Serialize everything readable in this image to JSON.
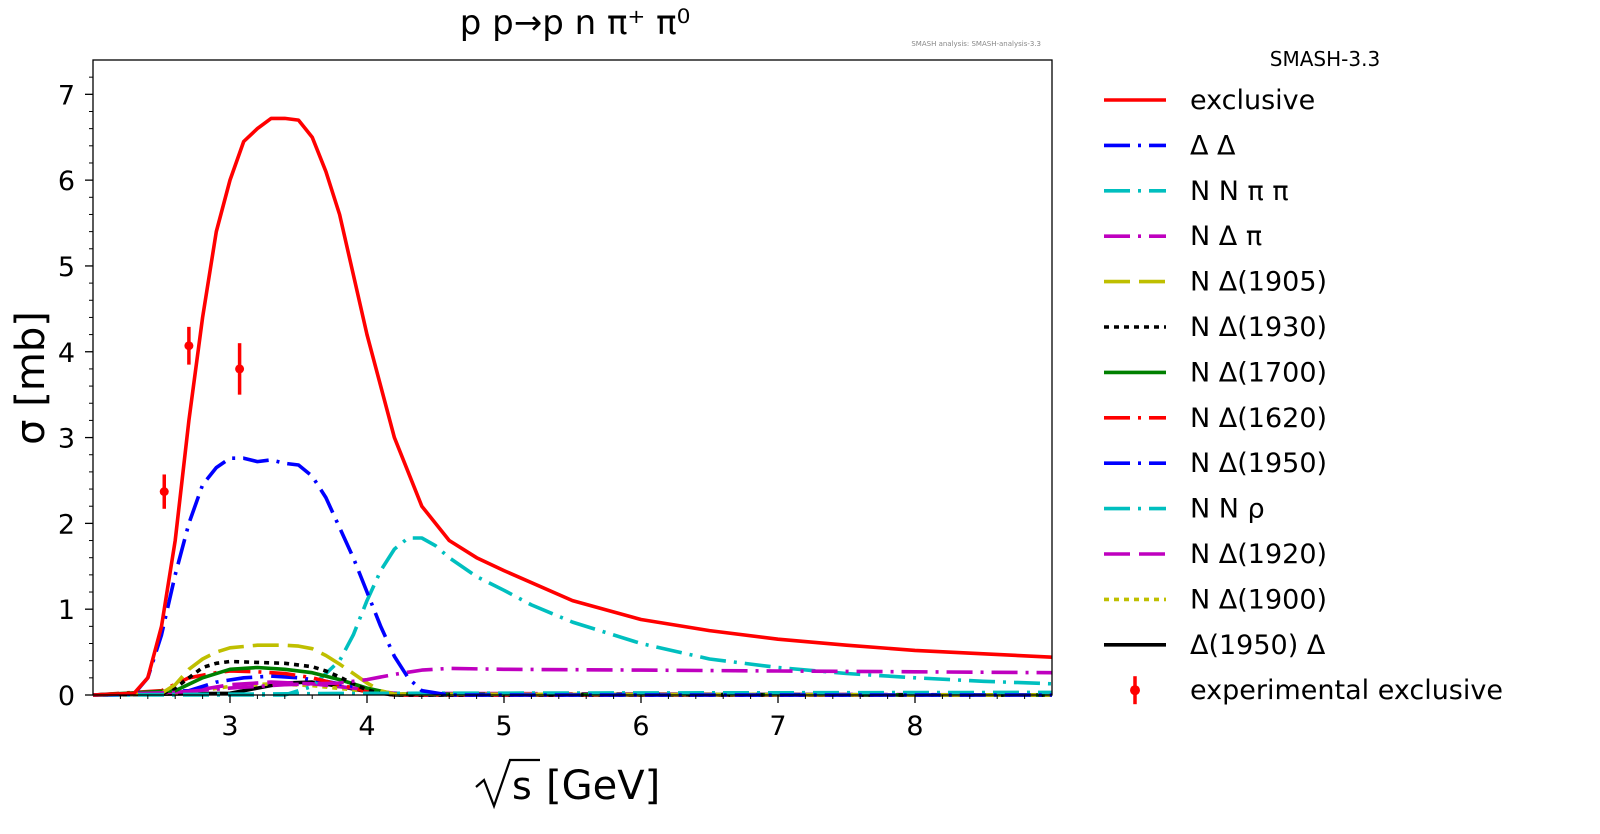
{
  "chart_data": {
    "type": "line",
    "title": "p p→p n π⁺ π⁰",
    "watermark": "SMASH analysis: SMASH-analysis-3.3",
    "xlabel_sym": "s",
    "xlabel_unit": "[GeV]",
    "ylabel": "σ [mb]",
    "xlim": [
      2.0,
      9.0
    ],
    "ylim": [
      0,
      7.4
    ],
    "xticks": [
      3,
      4,
      5,
      6,
      7,
      8
    ],
    "yticks": [
      0,
      1,
      2,
      3,
      4,
      5,
      6,
      7
    ],
    "grid": false,
    "legend": {
      "title": "SMASH-3.3",
      "placement": "outside-right"
    },
    "series": [
      {
        "name": "exclusive",
        "color": "#ff0000",
        "style": "solid",
        "x": [
          2.0,
          2.3,
          2.4,
          2.5,
          2.6,
          2.7,
          2.8,
          2.9,
          3.0,
          3.1,
          3.2,
          3.3,
          3.4,
          3.5,
          3.6,
          3.7,
          3.8,
          3.9,
          4.0,
          4.2,
          4.4,
          4.6,
          4.8,
          5.0,
          5.5,
          6.0,
          6.5,
          7.0,
          7.5,
          8.0,
          8.5,
          9.0
        ],
        "y": [
          0.0,
          0.02,
          0.2,
          0.8,
          1.8,
          3.2,
          4.4,
          5.4,
          6.0,
          6.45,
          6.6,
          6.72,
          6.72,
          6.7,
          6.5,
          6.1,
          5.6,
          4.9,
          4.2,
          3.0,
          2.2,
          1.8,
          1.6,
          1.45,
          1.1,
          0.88,
          0.75,
          0.65,
          0.58,
          0.52,
          0.48,
          0.44
        ]
      },
      {
        "name": "Δ Δ",
        "color": "#0000ff",
        "style": "dashdot",
        "x": [
          2.0,
          2.3,
          2.4,
          2.5,
          2.6,
          2.7,
          2.8,
          2.9,
          3.0,
          3.1,
          3.2,
          3.3,
          3.4,
          3.5,
          3.6,
          3.7,
          3.8,
          3.9,
          4.0,
          4.1,
          4.2,
          4.3,
          4.4,
          4.6,
          9.0
        ],
        "y": [
          0.0,
          0.01,
          0.2,
          0.7,
          1.4,
          2.0,
          2.45,
          2.65,
          2.76,
          2.76,
          2.72,
          2.74,
          2.7,
          2.68,
          2.55,
          2.3,
          1.95,
          1.6,
          1.2,
          0.8,
          0.45,
          0.2,
          0.05,
          0.0,
          0.0
        ]
      },
      {
        "name": "N N π π",
        "color": "#00bfbf",
        "style": "dashdot",
        "x": [
          2.0,
          4.0,
          9.0
        ],
        "y": [
          0.0,
          0.02,
          0.03
        ]
      },
      {
        "name": "N Δ π",
        "color": "#bf00bf",
        "style": "dashdot",
        "x": [
          2.0,
          2.6,
          3.0,
          3.4,
          3.8,
          4.0,
          4.2,
          4.4,
          4.6,
          5.0,
          6.0,
          7.0,
          8.0,
          9.0
        ],
        "y": [
          0.0,
          0.03,
          0.08,
          0.12,
          0.14,
          0.18,
          0.24,
          0.29,
          0.31,
          0.3,
          0.29,
          0.28,
          0.27,
          0.26
        ]
      },
      {
        "name": "N Δ(1905)",
        "color": "#bfbf00",
        "style": "dashed",
        "x": [
          2.0,
          2.5,
          2.6,
          2.7,
          2.8,
          2.9,
          3.0,
          3.2,
          3.4,
          3.5,
          3.6,
          3.7,
          3.8,
          3.9,
          4.0,
          4.1,
          4.2,
          9.0
        ],
        "y": [
          0.0,
          0.02,
          0.12,
          0.3,
          0.42,
          0.5,
          0.55,
          0.58,
          0.58,
          0.57,
          0.54,
          0.46,
          0.36,
          0.25,
          0.14,
          0.05,
          0.01,
          0.0
        ]
      },
      {
        "name": "N Δ(1930)",
        "color": "#000000",
        "style": "dotted",
        "x": [
          2.0,
          2.5,
          2.6,
          2.7,
          2.8,
          2.9,
          3.0,
          3.2,
          3.4,
          3.6,
          3.7,
          3.8,
          3.9,
          4.0,
          4.1,
          4.2,
          9.0
        ],
        "y": [
          0.0,
          0.01,
          0.08,
          0.2,
          0.32,
          0.37,
          0.39,
          0.38,
          0.37,
          0.33,
          0.28,
          0.21,
          0.13,
          0.06,
          0.02,
          0.0,
          0.0
        ]
      },
      {
        "name": "N Δ(1700)",
        "color": "#008000",
        "style": "solid",
        "x": [
          2.0,
          2.6,
          2.8,
          3.0,
          3.2,
          3.4,
          3.6,
          3.8,
          4.0,
          4.2,
          9.0
        ],
        "y": [
          0.0,
          0.05,
          0.2,
          0.3,
          0.32,
          0.3,
          0.26,
          0.18,
          0.08,
          0.01,
          0.0
        ]
      },
      {
        "name": "N Δ(1620)",
        "color": "#ff0000",
        "style": "dashdot",
        "x": [
          2.0,
          2.5,
          2.7,
          2.9,
          3.0,
          3.2,
          3.4,
          3.6,
          3.8,
          4.0,
          4.2,
          9.0
        ],
        "y": [
          0.0,
          0.05,
          0.2,
          0.26,
          0.28,
          0.27,
          0.25,
          0.2,
          0.12,
          0.04,
          0.0,
          0.0
        ]
      },
      {
        "name": "N Δ(1950)",
        "color": "#0000ff",
        "style": "dashdot",
        "x": [
          2.0,
          2.7,
          2.9,
          3.1,
          3.3,
          3.5,
          3.7,
          3.9,
          4.1,
          4.3,
          9.0
        ],
        "y": [
          0.0,
          0.05,
          0.15,
          0.2,
          0.22,
          0.2,
          0.16,
          0.1,
          0.04,
          0.0,
          0.0
        ]
      },
      {
        "name": "N N ρ",
        "color": "#00bfbf",
        "style": "dashdot",
        "x": [
          2.0,
          3.4,
          3.6,
          3.8,
          3.9,
          4.0,
          4.1,
          4.2,
          4.3,
          4.4,
          4.5,
          4.6,
          4.8,
          5.0,
          5.2,
          5.5,
          6.0,
          6.5,
          7.0,
          7.5,
          8.0,
          8.5,
          9.0
        ],
        "y": [
          0.0,
          0.0,
          0.1,
          0.4,
          0.7,
          1.1,
          1.45,
          1.7,
          1.83,
          1.83,
          1.74,
          1.6,
          1.38,
          1.22,
          1.05,
          0.85,
          0.6,
          0.42,
          0.32,
          0.25,
          0.2,
          0.16,
          0.13
        ]
      },
      {
        "name": "N Δ(1920)",
        "color": "#bf00bf",
        "style": "dashed",
        "x": [
          2.0,
          2.7,
          3.0,
          3.3,
          3.6,
          3.9,
          4.2,
          9.0
        ],
        "y": [
          0.0,
          0.04,
          0.12,
          0.15,
          0.13,
          0.08,
          0.02,
          0.0
        ]
      },
      {
        "name": "N Δ(1900)",
        "color": "#bfbf00",
        "style": "dotted",
        "x": [
          2.0,
          2.7,
          3.0,
          3.3,
          3.6,
          3.9,
          4.2,
          9.0
        ],
        "y": [
          0.0,
          0.03,
          0.1,
          0.13,
          0.11,
          0.06,
          0.01,
          0.0
        ]
      },
      {
        "name": "Δ(1950) Δ",
        "color": "#000000",
        "style": "solid",
        "x": [
          2.0,
          3.0,
          3.2,
          3.4,
          3.6,
          3.8,
          4.0,
          4.2,
          9.0
        ],
        "y": [
          0.0,
          0.02,
          0.08,
          0.14,
          0.15,
          0.1,
          0.04,
          0.0,
          0.0
        ]
      }
    ],
    "experimental": {
      "name": "experimental exclusive",
      "color": "#ff0000",
      "x": [
        2.52,
        2.7,
        3.07
      ],
      "y": [
        2.37,
        4.07,
        3.8
      ],
      "yerr": [
        0.2,
        0.22,
        0.3
      ]
    }
  }
}
